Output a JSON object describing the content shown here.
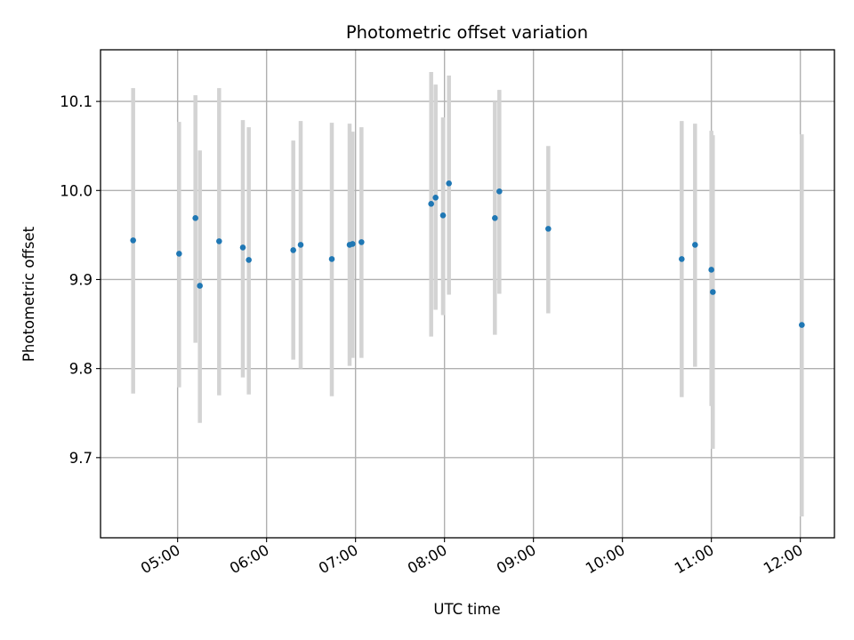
{
  "chart_data": {
    "type": "scatter",
    "title": "Photometric offset variation",
    "xlabel": "UTC time",
    "ylabel": "Photometric offset",
    "x_unit": "UTC time (hours)",
    "xlim": [
      "04:08",
      "12:23"
    ],
    "ylim": [
      9.61,
      10.158
    ],
    "grid": true,
    "x_ticks": [
      {
        "value": "05:00",
        "label": "05:00"
      },
      {
        "value": "06:00",
        "label": "06:00"
      },
      {
        "value": "07:00",
        "label": "07:00"
      },
      {
        "value": "08:00",
        "label": "08:00"
      },
      {
        "value": "09:00",
        "label": "09:00"
      },
      {
        "value": "10:00",
        "label": "10:00"
      },
      {
        "value": "11:00",
        "label": "11:00"
      },
      {
        "value": "12:00",
        "label": "12:00"
      }
    ],
    "y_ticks": [
      {
        "value": 9.7,
        "label": "9.7"
      },
      {
        "value": 9.8,
        "label": "9.8"
      },
      {
        "value": 9.9,
        "label": "9.9"
      },
      {
        "value": 10.0,
        "label": "10.0"
      },
      {
        "value": 10.1,
        "label": "10.1"
      }
    ],
    "series": [
      {
        "marker_color": "#1f77b4",
        "errorbar_color": "#d3d3d3",
        "points": [
          {
            "x": "04:30",
            "y": 9.944,
            "ylow": 9.772,
            "yhigh": 10.115
          },
          {
            "x": "05:01",
            "y": 9.929,
            "ylow": 9.779,
            "yhigh": 10.077
          },
          {
            "x": "05:12",
            "y": 9.969,
            "ylow": 9.829,
            "yhigh": 10.107
          },
          {
            "x": "05:15",
            "y": 9.893,
            "ylow": 9.739,
            "yhigh": 10.045
          },
          {
            "x": "05:28",
            "y": 9.943,
            "ylow": 9.77,
            "yhigh": 10.115
          },
          {
            "x": "05:44",
            "y": 9.936,
            "ylow": 9.79,
            "yhigh": 10.079
          },
          {
            "x": "05:48",
            "y": 9.922,
            "ylow": 9.771,
            "yhigh": 10.071
          },
          {
            "x": "06:18",
            "y": 9.933,
            "ylow": 9.81,
            "yhigh": 10.056
          },
          {
            "x": "06:23",
            "y": 9.939,
            "ylow": 9.8,
            "yhigh": 10.078
          },
          {
            "x": "06:44",
            "y": 9.923,
            "ylow": 9.769,
            "yhigh": 10.076
          },
          {
            "x": "06:56",
            "y": 9.939,
            "ylow": 9.803,
            "yhigh": 10.075
          },
          {
            "x": "06:58",
            "y": 9.94,
            "ylow": 9.812,
            "yhigh": 10.066
          },
          {
            "x": "07:04",
            "y": 9.942,
            "ylow": 9.812,
            "yhigh": 10.071
          },
          {
            "x": "07:51",
            "y": 9.985,
            "ylow": 9.836,
            "yhigh": 10.133
          },
          {
            "x": "07:54",
            "y": 9.992,
            "ylow": 9.866,
            "yhigh": 10.119
          },
          {
            "x": "07:59",
            "y": 9.972,
            "ylow": 9.86,
            "yhigh": 10.082
          },
          {
            "x": "08:03",
            "y": 10.008,
            "ylow": 9.883,
            "yhigh": 10.129
          },
          {
            "x": "08:34",
            "y": 9.969,
            "ylow": 9.838,
            "yhigh": 10.1
          },
          {
            "x": "08:37",
            "y": 9.999,
            "ylow": 9.884,
            "yhigh": 10.113
          },
          {
            "x": "09:10",
            "y": 9.957,
            "ylow": 9.862,
            "yhigh": 10.05
          },
          {
            "x": "10:40",
            "y": 9.923,
            "ylow": 9.768,
            "yhigh": 10.078
          },
          {
            "x": "10:49",
            "y": 9.939,
            "ylow": 9.802,
            "yhigh": 10.075
          },
          {
            "x": "11:00",
            "y": 9.911,
            "ylow": 9.758,
            "yhigh": 10.067
          },
          {
            "x": "11:01",
            "y": 9.886,
            "ylow": 9.71,
            "yhigh": 10.062
          },
          {
            "x": "12:01",
            "y": 9.849,
            "ylow": 9.634,
            "yhigh": 10.063
          }
        ]
      }
    ]
  }
}
